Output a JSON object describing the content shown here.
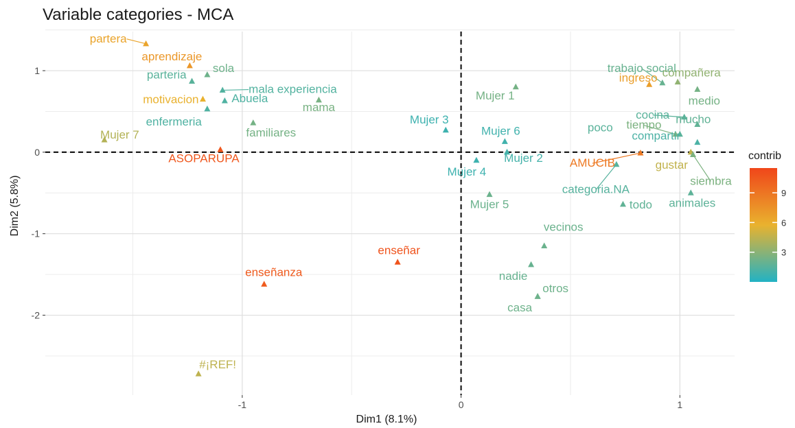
{
  "chart_data": {
    "type": "scatter",
    "title": "Variable categories - MCA",
    "xlabel": "Dim1 (8.1%)",
    "ylabel": "Dim2 (5.8%)",
    "xlim": [
      -1.9,
      1.25
    ],
    "ylim": [
      -2.98,
      1.48
    ],
    "x_ticks": [
      {
        "value": -1,
        "label": "-1"
      },
      {
        "value": 0,
        "label": "0"
      },
      {
        "value": 1,
        "label": "1"
      }
    ],
    "y_ticks": [
      {
        "value": 1,
        "label": "1"
      },
      {
        "value": 0,
        "label": "0"
      },
      {
        "value": -1,
        "label": "-1"
      },
      {
        "value": -2,
        "label": "-2"
      }
    ],
    "grid": true,
    "reference_lines": {
      "x": 0,
      "y": 0,
      "style": "dashed"
    },
    "legend": {
      "title": "contrib",
      "position": "right",
      "range": [
        0,
        11.5
      ],
      "ticks": [
        {
          "value": 3,
          "label": "3"
        },
        {
          "value": 6,
          "label": "6"
        },
        {
          "value": 9,
          "label": "9"
        }
      ],
      "colors": [
        "#22b2c4",
        "#e9b22e",
        "#f0461a"
      ]
    },
    "points": [
      {
        "label": "partera",
        "x": -1.44,
        "y": 1.33,
        "contrib": 6.5
      },
      {
        "label": "aprendizaje",
        "x": -1.24,
        "y": 1.06,
        "contrib": 7.2
      },
      {
        "label": "sola",
        "x": -1.16,
        "y": 0.95,
        "contrib": 2.2
      },
      {
        "label": "parteria",
        "x": -1.23,
        "y": 0.87,
        "contrib": 1.6
      },
      {
        "label": "mala experiencia",
        "x": -1.09,
        "y": 0.76,
        "contrib": 1.4
      },
      {
        "label": "motivacion",
        "x": -1.18,
        "y": 0.65,
        "contrib": 5.8
      },
      {
        "label": "Abuela",
        "x": -1.08,
        "y": 0.63,
        "contrib": 1.3
      },
      {
        "label": "mama",
        "x": -0.65,
        "y": 0.64,
        "contrib": 2.5
      },
      {
        "label": "enfermeria",
        "x": -1.16,
        "y": 0.53,
        "contrib": 1.3
      },
      {
        "label": "familiares",
        "x": -0.95,
        "y": 0.36,
        "contrib": 2.4
      },
      {
        "label": "Mujer 7",
        "x": -1.63,
        "y": 0.15,
        "contrib": 4.2
      },
      {
        "label": "ASOPARUPA",
        "x": -1.1,
        "y": 0.03,
        "contrib": 10.6
      },
      {
        "label": "Mujer 1",
        "x": 0.25,
        "y": 0.8,
        "contrib": 2.4
      },
      {
        "label": "Mujer 3",
        "x": -0.07,
        "y": 0.27,
        "contrib": 0.8
      },
      {
        "label": "Mujer 6",
        "x": 0.2,
        "y": 0.13,
        "contrib": 0.9
      },
      {
        "label": "Mujer 2",
        "x": 0.21,
        "y": 0.0,
        "contrib": 1.0
      },
      {
        "label": "Mujer 4",
        "x": 0.07,
        "y": -0.1,
        "contrib": 0.8
      },
      {
        "label": "Mujer 5",
        "x": 0.13,
        "y": -0.52,
        "contrib": 2.1
      },
      {
        "label": "trabajo social",
        "x": 0.92,
        "y": 0.85,
        "contrib": 2.0
      },
      {
        "label": "ingreso",
        "x": 0.86,
        "y": 0.83,
        "contrib": 6.8
      },
      {
        "label": "compañera",
        "x": 0.99,
        "y": 0.86,
        "contrib": 3.2
      },
      {
        "label": "medio",
        "x": 1.08,
        "y": 0.77,
        "contrib": 2.4
      },
      {
        "label": "cocina",
        "x": 1.02,
        "y": 0.43,
        "contrib": 1.6
      },
      {
        "label": "mucho",
        "x": 1.08,
        "y": 0.34,
        "contrib": 1.8
      },
      {
        "label": "tiempo",
        "x": 0.98,
        "y": 0.22,
        "contrib": 2.6
      },
      {
        "label": "poco",
        "x": 1.0,
        "y": 0.22,
        "contrib": 1.6
      },
      {
        "label": "compartir",
        "x": 1.08,
        "y": 0.12,
        "contrib": 1.2
      },
      {
        "label": "gustar",
        "x": 1.05,
        "y": 0.0,
        "contrib": 4.6
      },
      {
        "label": "AMUCIB",
        "x": 0.82,
        "y": -0.01,
        "contrib": 8.8
      },
      {
        "label": "categoria.NA",
        "x": 0.71,
        "y": -0.15,
        "contrib": 1.5
      },
      {
        "label": "siembra",
        "x": 1.06,
        "y": -0.03,
        "contrib": 2.6
      },
      {
        "label": "animales",
        "x": 1.05,
        "y": -0.5,
        "contrib": 1.7
      },
      {
        "label": "todo",
        "x": 0.74,
        "y": -0.64,
        "contrib": 1.8
      },
      {
        "label": "vecinos",
        "x": 0.38,
        "y": -1.15,
        "contrib": 2.1
      },
      {
        "label": "nadie",
        "x": 0.32,
        "y": -1.38,
        "contrib": 2.0
      },
      {
        "label": "otros",
        "x": 0.35,
        "y": -1.77,
        "contrib": 2.2
      },
      {
        "label": "casa",
        "x": 0.35,
        "y": -1.77,
        "contrib": 2.2
      },
      {
        "label": "enseñar",
        "x": -0.29,
        "y": -1.35,
        "contrib": 10.8
      },
      {
        "label": "enseñanza",
        "x": -0.9,
        "y": -1.62,
        "contrib": 10.4
      },
      {
        "label": "#¡REF!",
        "x": -1.2,
        "y": -2.72,
        "contrib": 4.5
      }
    ]
  }
}
